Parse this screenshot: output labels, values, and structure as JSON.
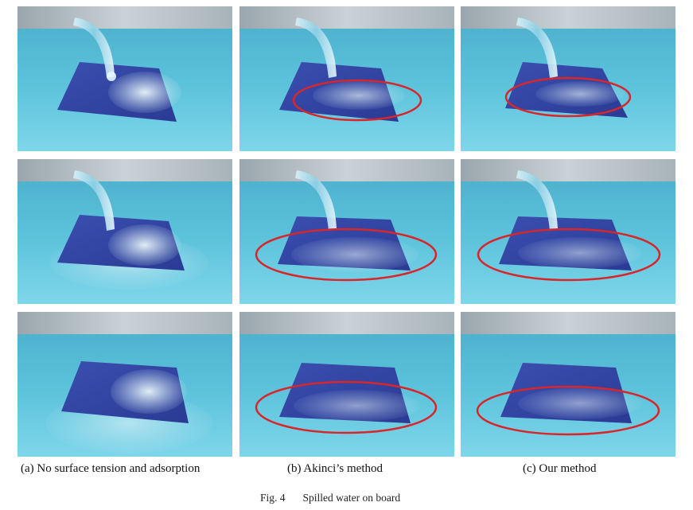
{
  "figure": {
    "columns": [
      {
        "caption": "(a) No surface tension and adsorption"
      },
      {
        "caption": "(b) Akinci’s method"
      },
      {
        "caption": "(c) Our method"
      }
    ],
    "rows": 3,
    "highlight_color": "#d8262a",
    "fig_label": "Fig. 4",
    "fig_title": "Spilled water on board"
  }
}
